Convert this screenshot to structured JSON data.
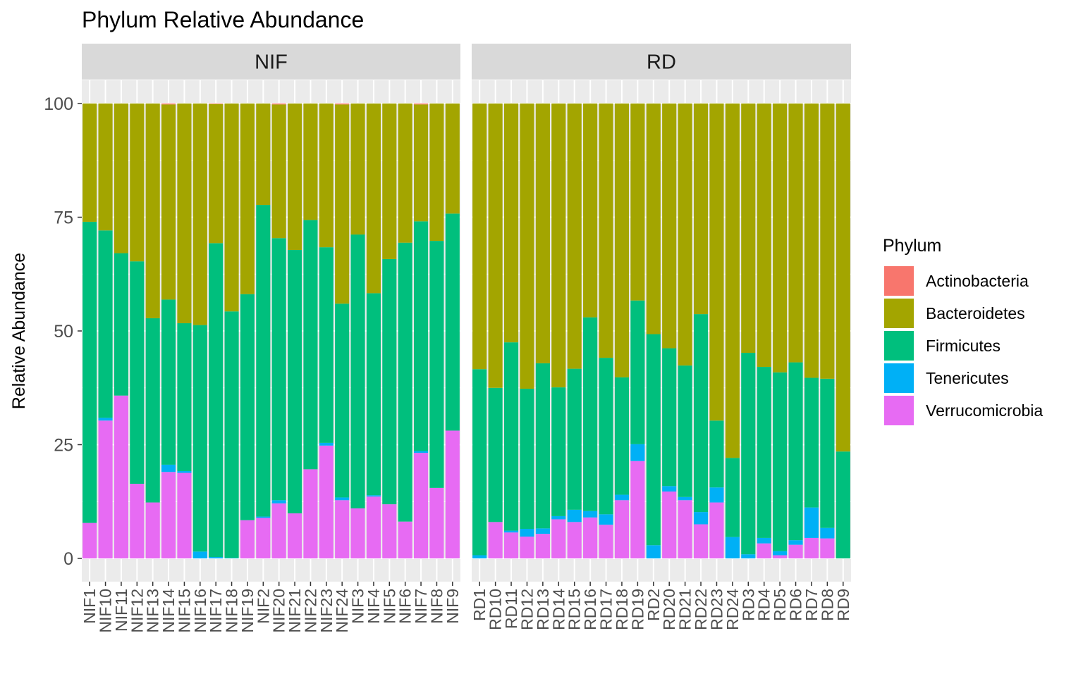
{
  "chart_data": {
    "type": "bar",
    "stacked": true,
    "title": "Phylum Relative Abundance",
    "ylabel": "Relative Abundance",
    "xlabel": "",
    "ylim": [
      0,
      100
    ],
    "yticks": [
      0,
      25,
      50,
      75,
      100
    ],
    "grid": true,
    "legend": {
      "title": "Phylum",
      "position": "right"
    },
    "series_order": [
      "Verrucomicrobia",
      "Tenericutes",
      "Firmicutes",
      "Bacteroidetes",
      "Actinobacteria"
    ],
    "legend_order": [
      "Actinobacteria",
      "Bacteroidetes",
      "Firmicutes",
      "Tenericutes",
      "Verrucomicrobia"
    ],
    "colors": {
      "Actinobacteria": "#F8766D",
      "Bacteroidetes": "#A3A500",
      "Firmicutes": "#00BF7D",
      "Tenericutes": "#00B0F6",
      "Verrucomicrobia": "#E76BF3"
    },
    "facets": [
      {
        "name": "NIF",
        "categories": [
          "NIF1",
          "NIF10",
          "NIF11",
          "NIF12",
          "NIF13",
          "NIF14",
          "NIF15",
          "NIF16",
          "NIF17",
          "NIF18",
          "NIF19",
          "NIF2",
          "NIF20",
          "NIF21",
          "NIF22",
          "NIF23",
          "NIF24",
          "NIF3",
          "NIF4",
          "NIF5",
          "NIF6",
          "NIF7",
          "NIF8",
          "NIF9"
        ],
        "series": [
          {
            "name": "Verrucomicrobia",
            "values": [
              7.8,
              30.3,
              35.8,
              16.4,
              12.3,
              19.0,
              18.8,
              0.0,
              0.0,
              0.0,
              8.4,
              8.9,
              12.1,
              9.9,
              19.6,
              24.8,
              12.8,
              11.0,
              13.6,
              11.9,
              8.1,
              23.2,
              15.5,
              28.1
            ]
          },
          {
            "name": "Tenericutes",
            "values": [
              0.0,
              0.6,
              0.0,
              0.0,
              0.0,
              1.6,
              0.4,
              1.5,
              0.3,
              0.1,
              0.0,
              0.3,
              0.7,
              0.0,
              0.0,
              0.6,
              0.6,
              0.0,
              0.3,
              0.0,
              0.0,
              0.4,
              0.0,
              0.0
            ]
          },
          {
            "name": "Firmicutes",
            "values": [
              66.2,
              41.2,
              31.3,
              48.9,
              40.5,
              36.3,
              32.5,
              49.8,
              69.0,
              54.2,
              49.7,
              68.5,
              57.6,
              57.9,
              54.8,
              43.0,
              42.6,
              60.2,
              44.4,
              53.9,
              61.3,
              50.5,
              54.3,
              47.7
            ]
          },
          {
            "name": "Bacteroidetes",
            "values": [
              26.0,
              27.9,
              32.9,
              34.7,
              47.2,
              42.9,
              48.3,
              48.7,
              30.6,
              45.7,
              41.9,
              22.3,
              29.4,
              32.2,
              25.6,
              31.6,
              43.8,
              28.8,
              41.7,
              34.2,
              30.6,
              25.7,
              30.2,
              24.2
            ]
          },
          {
            "name": "Actinobacteria",
            "values": [
              0.0,
              0.0,
              0.0,
              0.0,
              0.0,
              0.2,
              0.0,
              0.0,
              0.1,
              0.0,
              0.0,
              0.0,
              0.2,
              0.0,
              0.0,
              0.0,
              0.2,
              0.0,
              0.0,
              0.0,
              0.0,
              0.2,
              0.0,
              0.0
            ]
          }
        ]
      },
      {
        "name": "RD",
        "categories": [
          "RD1",
          "RD10",
          "RD11",
          "RD12",
          "RD13",
          "RD14",
          "RD15",
          "RD16",
          "RD17",
          "RD18",
          "RD19",
          "RD2",
          "RD20",
          "RD21",
          "RD22",
          "RD23",
          "RD24",
          "RD3",
          "RD4",
          "RD5",
          "RD6",
          "RD7",
          "RD8",
          "RD9"
        ],
        "series": [
          {
            "name": "Verrucomicrobia",
            "values": [
              0.0,
              8.0,
              5.7,
              4.8,
              5.4,
              8.6,
              8.0,
              9.0,
              7.4,
              12.8,
              21.4,
              0.0,
              14.7,
              12.8,
              7.5,
              12.3,
              0.0,
              0.0,
              3.3,
              0.7,
              3.0,
              4.5,
              4.4,
              0.0
            ]
          },
          {
            "name": "Tenericutes",
            "values": [
              0.7,
              0.0,
              0.4,
              1.7,
              1.2,
              0.7,
              2.7,
              1.4,
              2.3,
              1.2,
              3.7,
              2.9,
              1.2,
              0.7,
              2.7,
              3.3,
              4.7,
              0.9,
              1.2,
              0.9,
              1.0,
              6.7,
              2.3,
              0.0
            ]
          },
          {
            "name": "Firmicutes",
            "values": [
              40.9,
              29.5,
              41.4,
              30.8,
              36.3,
              28.3,
              31.0,
              42.6,
              34.4,
              25.8,
              31.6,
              46.4,
              30.3,
              28.9,
              43.5,
              14.7,
              17.4,
              44.3,
              37.6,
              39.3,
              39.1,
              28.5,
              32.8,
              23.5
            ]
          },
          {
            "name": "Bacteroidetes",
            "values": [
              58.4,
              62.5,
              52.5,
              62.7,
              57.1,
              62.4,
              58.3,
              47.0,
              55.9,
              60.2,
              43.3,
              50.7,
              53.8,
              57.6,
              46.3,
              69.7,
              77.9,
              54.8,
              57.9,
              59.1,
              56.9,
              60.3,
              60.5,
              76.5
            ]
          },
          {
            "name": "Actinobacteria",
            "values": [
              0.0,
              0.0,
              0.0,
              0.0,
              0.0,
              0.0,
              0.0,
              0.0,
              0.0,
              0.0,
              0.0,
              0.0,
              0.0,
              0.0,
              0.0,
              0.0,
              0.0,
              0.0,
              0.0,
              0.0,
              0.0,
              0.0,
              0.0,
              0.0
            ]
          }
        ]
      }
    ]
  }
}
